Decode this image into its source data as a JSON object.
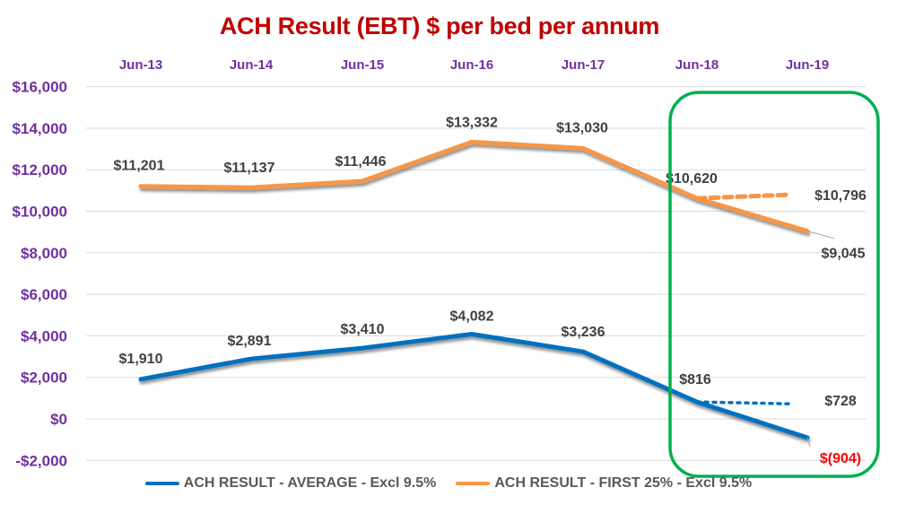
{
  "chart_data": {
    "type": "line",
    "title": "ACH Result (EBT) $ per bed per annum",
    "xlabel": "",
    "ylabel": "",
    "categories": [
      "Jun-13",
      "Jun-14",
      "Jun-15",
      "Jun-16",
      "Jun-17",
      "Jun-18",
      "Jun-19"
    ],
    "x_axis_position": "top",
    "ylim": [
      -2000,
      16000
    ],
    "yticks": [
      16000,
      14000,
      12000,
      10000,
      8000,
      6000,
      4000,
      2000,
      0,
      -2000
    ],
    "ytick_labels": [
      "$16,000",
      "$14,000",
      "$12,000",
      "$10,000",
      "$8,000",
      "$6,000",
      "$4,000",
      "$2,000",
      "$0",
      "-$2,000"
    ],
    "grid": true,
    "legend_position": "bottom",
    "series": [
      {
        "name": "ACH RESULT - AVERAGE - Excl 9.5%",
        "color": "#0070c0",
        "values": [
          1910,
          2891,
          3410,
          4082,
          3236,
          816,
          -904
        ],
        "labels": [
          "$1,910",
          "$2,891",
          "$3,410",
          "$4,082",
          "$3,236",
          "$816",
          "$(904)"
        ]
      },
      {
        "name": "ACH RESULT - FIRST 25% - Excl 9.5%",
        "color": "#f79646",
        "values": [
          11201,
          11137,
          11446,
          13332,
          13030,
          10620,
          9045
        ],
        "labels": [
          "$11,201",
          "$11,137",
          "$11,446",
          "$13,332",
          "$13,030",
          "$10,620",
          "$9,045"
        ]
      }
    ],
    "projections": [
      {
        "series": "ACH RESULT - AVERAGE - Excl 9.5%",
        "style": "dotted",
        "from": "Jun-18",
        "to": "Jun-19",
        "value_from": 816,
        "value_to": 728,
        "label": "$728"
      },
      {
        "series": "ACH RESULT - FIRST 25% - Excl 9.5%",
        "style": "dashed",
        "from": "Jun-18",
        "to": "Jun-19",
        "value_from": 10620,
        "value_to": 10796,
        "label": "$10,796"
      }
    ],
    "annotations": [
      {
        "type": "rounded-rectangle",
        "color": "#00b050",
        "covers": [
          "Jun-18",
          "Jun-19"
        ]
      },
      {
        "type": "negative-value-highlight",
        "label": "$(904)",
        "color": "#ff0000"
      }
    ]
  }
}
